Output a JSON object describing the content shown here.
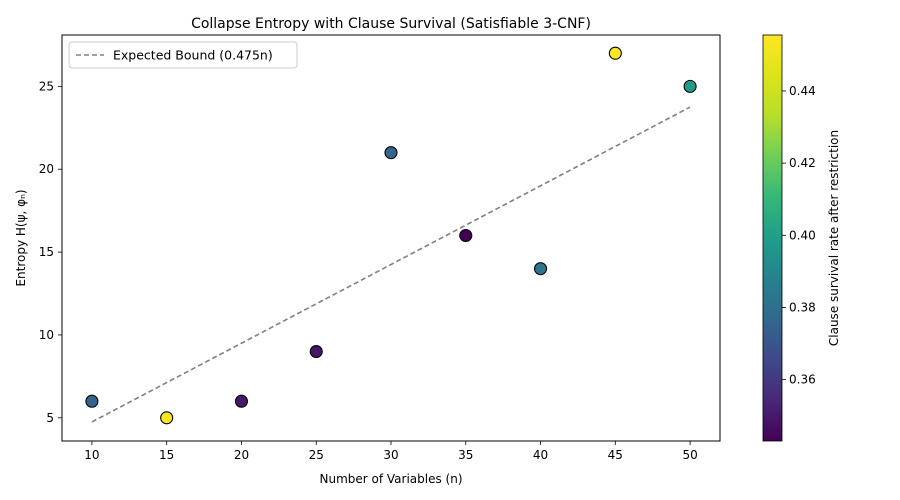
{
  "chart_data": {
    "type": "scatter",
    "title": "Collapse Entropy with Clause Survival (Satisfiable 3-CNF)",
    "xlabel": "Number of Variables (n)",
    "ylabel": "Entropy H(ψ, φₙ)",
    "xlim": [
      8,
      52
    ],
    "ylim": [
      3.6,
      28.1
    ],
    "xticks": [
      10,
      15,
      20,
      25,
      30,
      35,
      40,
      45,
      50
    ],
    "yticks": [
      5,
      10,
      15,
      20,
      25
    ],
    "grid": false,
    "legend": {
      "position": "top-left",
      "entries": [
        "Expected Bound (0.475n)"
      ]
    },
    "series": [
      {
        "kind": "points",
        "x": [
          10,
          15,
          20,
          25,
          30,
          35,
          40,
          45,
          50
        ],
        "y": [
          6,
          5,
          6,
          9,
          21,
          16,
          14,
          27,
          25
        ],
        "survival_rate": [
          0.375,
          0.454,
          0.35,
          0.349,
          0.376,
          0.343,
          0.382,
          0.455,
          0.398
        ]
      },
      {
        "kind": "line",
        "name": "Expected Bound (0.475n)",
        "slope": 0.475,
        "x": [
          10,
          50
        ],
        "color": "#808080",
        "style": "dashed"
      }
    ],
    "colorbar": {
      "label": "Clause survival rate after restriction",
      "colormap": "viridis",
      "range": [
        0.343,
        0.4555
      ],
      "ticks": [
        0.36,
        0.38,
        0.4,
        0.42,
        0.44
      ],
      "tick_labels": [
        "0.36",
        "0.38",
        "0.40",
        "0.42",
        "0.44"
      ]
    }
  }
}
